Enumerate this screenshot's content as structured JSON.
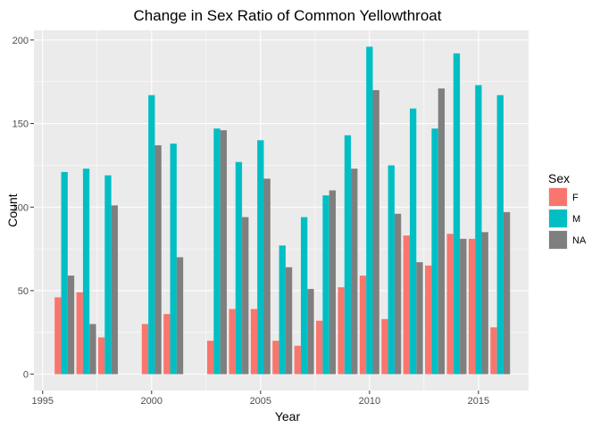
{
  "chart_data": {
    "type": "bar",
    "title": "Change in Sex Ratio of Common Yellowthroat",
    "xlabel": "Year",
    "ylabel": "Count",
    "xlim": [
      1994.6,
      2017.3
    ],
    "ylim": [
      -9.8,
      205.8
    ],
    "x_ticks": [
      1995,
      2000,
      2005,
      2010,
      2015
    ],
    "y_ticks": [
      0,
      50,
      100,
      150,
      200
    ],
    "legend_title": "Sex",
    "legend_position": "right",
    "grid": true,
    "x": [
      1996,
      1997,
      1998,
      2000,
      2001,
      2003,
      2004,
      2005,
      2006,
      2007,
      2008,
      2009,
      2010,
      2011,
      2012,
      2013,
      2014,
      2015,
      2016
    ],
    "series": [
      {
        "name": "F",
        "color": "#F8766D",
        "values": [
          46,
          49,
          22,
          30,
          36,
          20,
          39,
          39,
          20,
          17,
          32,
          52,
          59,
          33,
          83,
          65,
          84,
          81,
          28
        ]
      },
      {
        "name": "M",
        "color": "#00BFC4",
        "values": [
          121,
          123,
          119,
          167,
          138,
          147,
          127,
          140,
          77,
          94,
          107,
          143,
          196,
          125,
          159,
          147,
          192,
          173,
          167
        ]
      },
      {
        "name": "NA",
        "color": "#7F7F7F",
        "values": [
          59,
          30,
          101,
          137,
          70,
          146,
          94,
          117,
          64,
          51,
          110,
          123,
          170,
          96,
          67,
          171,
          81,
          85,
          97
        ]
      }
    ]
  }
}
